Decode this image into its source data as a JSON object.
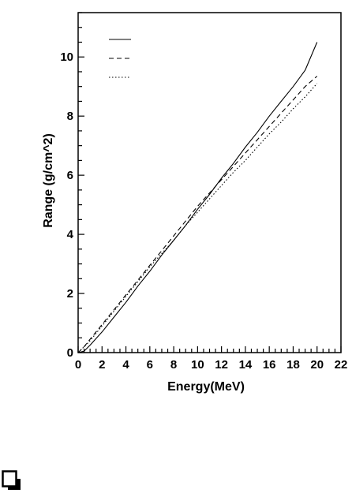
{
  "chart_data": {
    "type": "line",
    "title": "",
    "xlabel": "Energy(MeV)",
    "ylabel": "Range (g/cm^2)",
    "xlim": [
      0,
      22
    ],
    "ylim": [
      0,
      11.5
    ],
    "x_ticks": [
      0,
      2,
      4,
      6,
      8,
      10,
      12,
      14,
      16,
      18,
      20,
      22
    ],
    "y_ticks": [
      0,
      2,
      4,
      6,
      8,
      10
    ],
    "grid": false,
    "legend": {
      "placement": "top-left",
      "entries": [
        {
          "style": "solid",
          "label": ""
        },
        {
          "style": "dashed",
          "label": ""
        },
        {
          "style": "dotted",
          "label": ""
        }
      ]
    },
    "series": [
      {
        "style": "solid",
        "x": [
          0,
          0.5,
          1,
          2,
          3,
          4,
          5,
          6,
          7,
          8,
          9,
          10,
          11,
          12,
          13,
          14,
          15,
          16,
          17,
          18,
          19,
          20
        ],
        "y": [
          0,
          0.05,
          0.25,
          0.7,
          1.2,
          1.7,
          2.25,
          2.75,
          3.3,
          3.8,
          4.3,
          4.85,
          5.35,
          5.9,
          6.4,
          6.95,
          7.45,
          8.0,
          8.5,
          9.0,
          9.55,
          10.5
        ]
      },
      {
        "style": "dashed",
        "x": [
          0,
          0.5,
          1,
          2,
          3,
          4,
          5,
          6,
          7,
          8,
          9,
          10,
          11,
          12,
          13,
          14,
          15,
          16,
          17,
          18,
          19,
          20
        ],
        "y": [
          0,
          0.2,
          0.45,
          0.95,
          1.45,
          1.95,
          2.45,
          2.95,
          3.45,
          3.95,
          4.45,
          4.95,
          5.4,
          5.85,
          6.3,
          6.75,
          7.2,
          7.65,
          8.1,
          8.55,
          9.0,
          9.35
        ]
      },
      {
        "style": "dotted",
        "x": [
          0,
          0.5,
          1,
          2,
          3,
          4,
          5,
          6,
          7,
          8,
          9,
          10,
          11,
          12,
          13,
          14,
          15,
          16,
          17,
          18,
          19,
          20
        ],
        "y": [
          0,
          0.2,
          0.4,
          0.9,
          1.4,
          1.9,
          2.4,
          2.9,
          3.35,
          3.8,
          4.3,
          4.75,
          5.2,
          5.65,
          6.1,
          6.5,
          6.95,
          7.4,
          7.8,
          8.25,
          8.65,
          9.1
        ]
      }
    ]
  },
  "icons": {
    "page_icon": "page-corner-icon"
  }
}
